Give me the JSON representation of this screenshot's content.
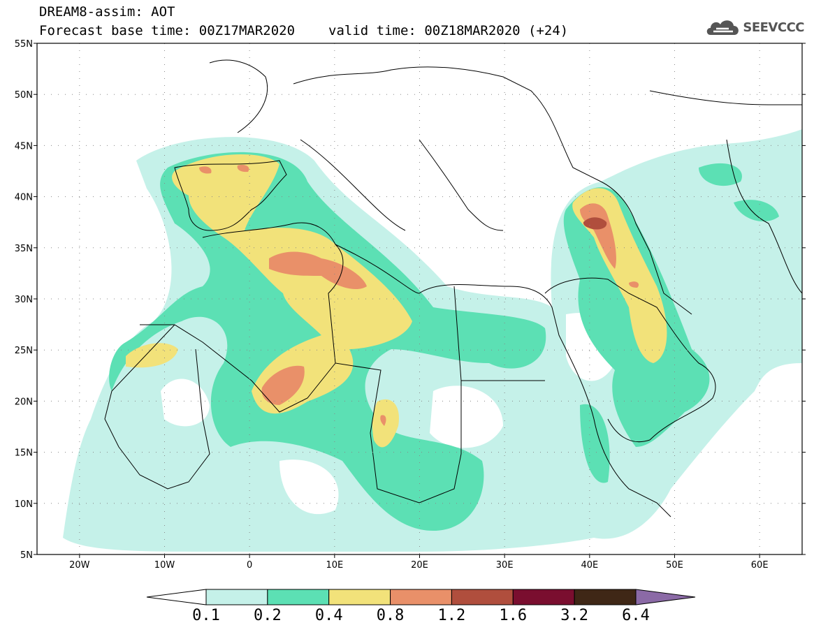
{
  "header": {
    "line1": "DREAM8-assim: AOT",
    "base_time": "Forecast base time: 00Z17MAR2020",
    "valid_time": "valid time: 00Z18MAR2020 (+24)"
  },
  "logo": {
    "text": "SEEVCCC",
    "icon": "cloud-icon"
  },
  "map": {
    "lat_labels": [
      "55N",
      "50N",
      "45N",
      "40N",
      "35N",
      "30N",
      "25N",
      "20N",
      "15N",
      "10N",
      "5N"
    ],
    "lon_labels": [
      "20W",
      "10W",
      "0",
      "10E",
      "20E",
      "30E",
      "40E",
      "50E",
      "60E"
    ]
  },
  "colorbar": {
    "colors": [
      "#ffffff",
      "#c5f1e9",
      "#5ce0b4",
      "#f2e27a",
      "#e99069",
      "#b04e3d",
      "#7a0e2f",
      "#3f2716",
      "#8b6aa6"
    ],
    "labels": [
      "0.1",
      "0.2",
      "0.4",
      "0.8",
      "1.2",
      "1.6",
      "3.2",
      "6.4"
    ]
  }
}
